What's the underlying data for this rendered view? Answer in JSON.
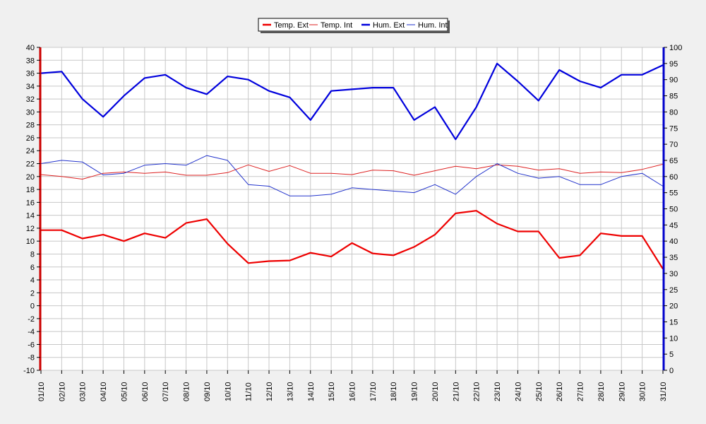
{
  "chart_data": {
    "type": "line",
    "categories": [
      "01/10",
      "02/10",
      "03/10",
      "04/10",
      "05/10",
      "06/10",
      "07/10",
      "08/10",
      "09/10",
      "10/10",
      "11/10",
      "12/10",
      "13/10",
      "14/10",
      "15/10",
      "16/10",
      "17/10",
      "18/10",
      "19/10",
      "20/10",
      "21/10",
      "22/10",
      "23/10",
      "24/10",
      "25/10",
      "26/10",
      "27/10",
      "28/10",
      "29/10",
      "30/10",
      "31/10"
    ],
    "y_left": {
      "range": [
        -10,
        40
      ],
      "ticks": [
        -10,
        -8,
        -6,
        -4,
        -2,
        0,
        2,
        4,
        6,
        8,
        10,
        12,
        14,
        16,
        18,
        20,
        22,
        24,
        26,
        28,
        30,
        32,
        34,
        36,
        38,
        40
      ],
      "color": "#cc0000"
    },
    "y_right": {
      "range": [
        0,
        100
      ],
      "ticks": [
        0,
        5,
        10,
        15,
        20,
        25,
        30,
        35,
        40,
        45,
        50,
        55,
        60,
        65,
        70,
        75,
        80,
        85,
        90,
        95,
        100
      ],
      "color": "#0000cc"
    },
    "grid": true,
    "legend_position": "top-center",
    "series": [
      {
        "name": "Temp. Ext",
        "axis": "left",
        "color": "#ee0000",
        "weight": "bold",
        "values": [
          11.7,
          11.7,
          10.4,
          11.0,
          10.0,
          11.2,
          10.5,
          12.8,
          13.4,
          9.6,
          6.6,
          6.9,
          7.0,
          8.2,
          7.6,
          9.7,
          8.1,
          7.8,
          9.1,
          11.0,
          14.3,
          14.7,
          12.7,
          11.5,
          11.5,
          7.4,
          7.8,
          11.2,
          10.8,
          10.8,
          5.7
        ]
      },
      {
        "name": "Temp. Int",
        "axis": "left",
        "color": "#dd2222",
        "weight": "thin",
        "values": [
          20.3,
          20.0,
          19.6,
          20.5,
          20.7,
          20.5,
          20.7,
          20.2,
          20.2,
          20.6,
          21.8,
          20.8,
          21.7,
          20.5,
          20.5,
          20.3,
          21.0,
          20.9,
          20.2,
          20.9,
          21.6,
          21.2,
          21.8,
          21.6,
          21.0,
          21.2,
          20.5,
          20.7,
          20.6,
          21.1,
          21.9
        ]
      },
      {
        "name": "Hum. Ext",
        "axis": "right",
        "color": "#0000dd",
        "weight": "bold",
        "values": [
          92.0,
          92.5,
          84.0,
          78.5,
          85.0,
          90.5,
          91.5,
          87.5,
          85.5,
          91.0,
          90.0,
          86.5,
          84.5,
          77.5,
          86.5,
          87.0,
          87.5,
          87.5,
          77.5,
          81.5,
          71.5,
          81.5,
          95.0,
          89.5,
          83.5,
          93.0,
          89.5,
          87.5,
          91.5,
          91.5,
          94.5
        ]
      },
      {
        "name": "Hum. Int",
        "axis": "right",
        "color": "#2233cc",
        "weight": "thin",
        "values": [
          64.0,
          65.0,
          64.5,
          60.5,
          61.0,
          63.5,
          64.0,
          63.5,
          66.5,
          65.0,
          57.5,
          57.0,
          54.0,
          54.0,
          54.5,
          56.5,
          56.0,
          55.5,
          55.0,
          57.5,
          54.5,
          60.0,
          64.0,
          61.0,
          59.5,
          60.0,
          57.5,
          57.5,
          60.0,
          61.0,
          57.0
        ]
      }
    ]
  }
}
